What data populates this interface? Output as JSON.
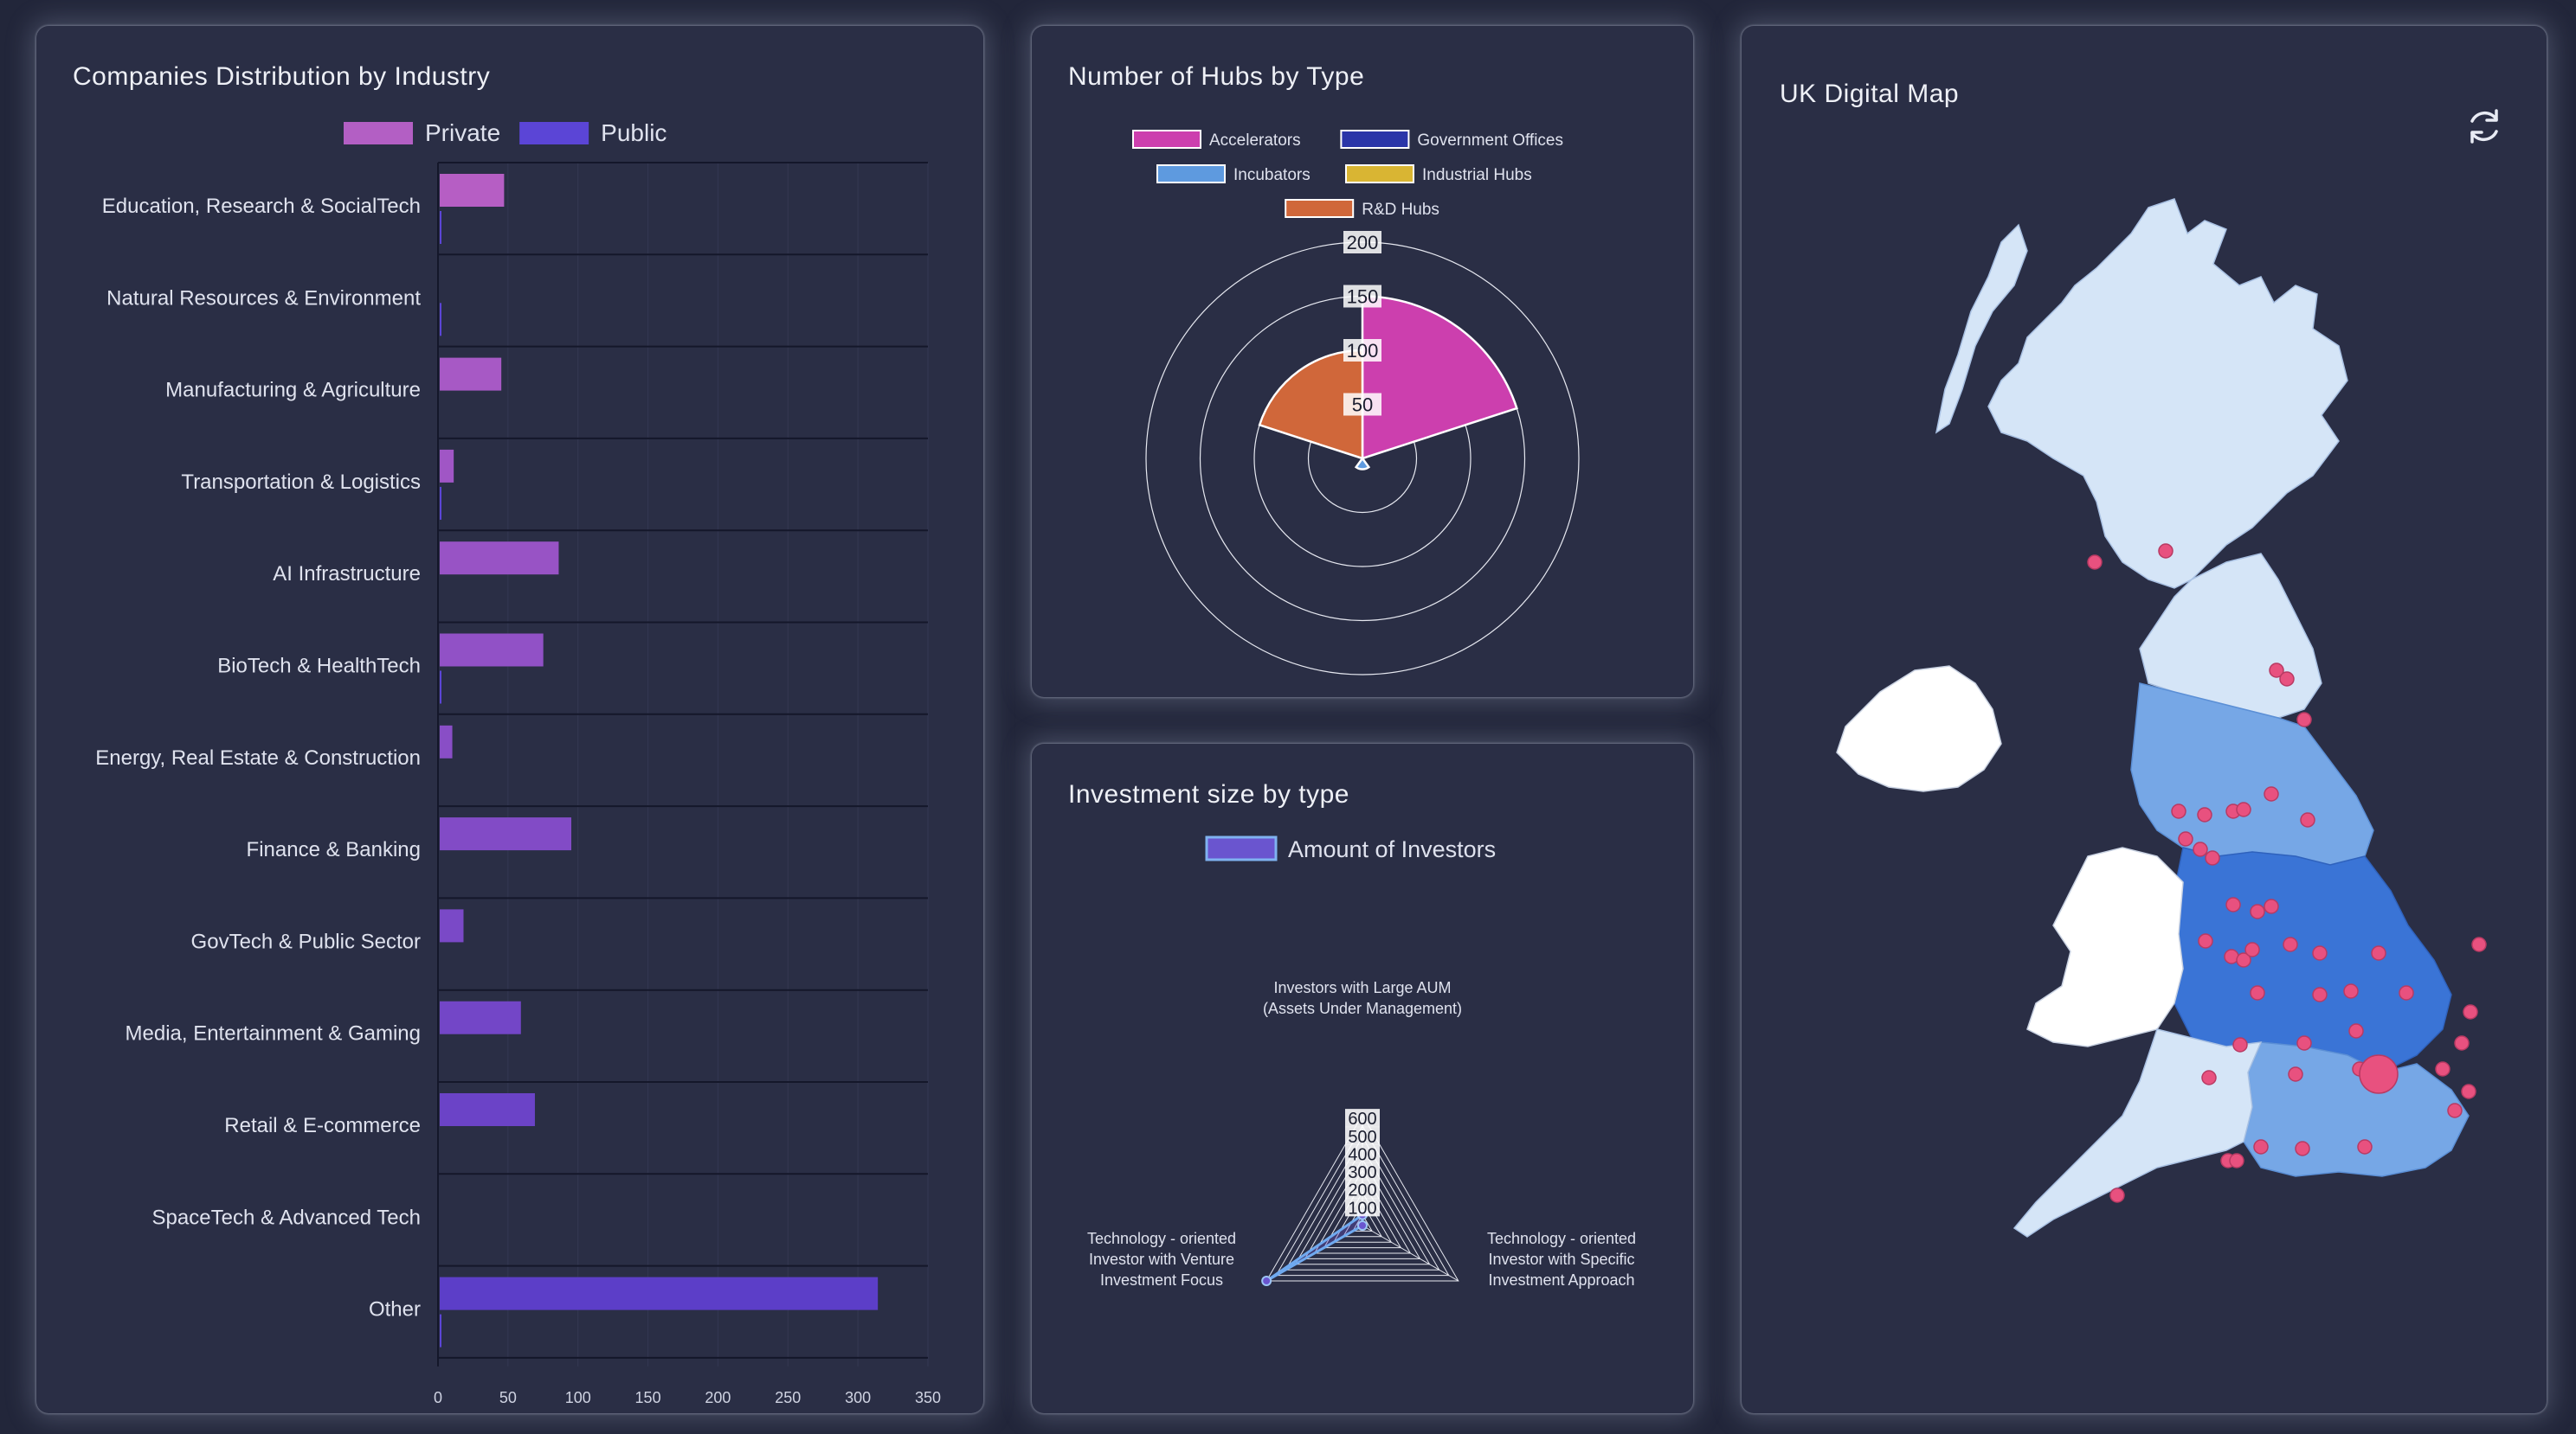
{
  "industry_panel": {
    "title": "Companies Distribution by Industry",
    "legend": [
      {
        "label": "Private",
        "color": "#b35fc4"
      },
      {
        "label": "Public",
        "color": "#5b45d6"
      }
    ]
  },
  "hubs_panel": {
    "title": "Number of Hubs by Type",
    "legend": [
      {
        "label": "Accelerators",
        "color": "#cc3fae"
      },
      {
        "label": "Government Offices",
        "color": "#2a35a8"
      },
      {
        "label": "Incubators",
        "color": "#5e9adf"
      },
      {
        "label": "Industrial Hubs",
        "color": "#d9b533"
      },
      {
        "label": "R&D Hubs",
        "color": "#d0673a"
      }
    ]
  },
  "investment_panel": {
    "title": "Investment size by type",
    "legend": [
      {
        "label": "Amount of Investors",
        "color": "#6a55cf"
      }
    ]
  },
  "map_panel": {
    "title": "UK Digital Map",
    "refresh_icon": "refresh-icon",
    "colors": {
      "light": "#d5e5f7",
      "mid": "#76a7e6",
      "dark": "#3a74d6",
      "white": "#ffffff",
      "marker": "#e8517f"
    }
  },
  "chart_data": [
    {
      "type": "bar",
      "orientation": "horizontal",
      "categories": [
        "Education, Research & SocialTech",
        "Natural Resources & Environment",
        "Manufacturing & Agriculture",
        "Transportation & Logistics",
        "AI Infrastructure",
        "BioTech & HealthTech",
        "Energy, Real Estate & Construction",
        "Finance & Banking",
        "GovTech & Public Sector",
        "Media, Entertainment & Gaming",
        "Retail & E-commerce",
        "SpaceTech & Advanced Tech",
        "Other"
      ],
      "series": [
        {
          "name": "Private",
          "values": [
            46,
            0,
            44,
            10,
            85,
            74,
            9,
            94,
            17,
            58,
            68,
            0,
            313
          ]
        },
        {
          "name": "Public",
          "values": [
            1,
            1,
            0,
            1,
            0,
            1,
            0,
            0,
            0,
            0,
            0,
            0,
            1
          ]
        }
      ],
      "xlim": [
        0,
        350
      ],
      "xticks": [
        "0",
        "50",
        "100",
        "150",
        "200",
        "250",
        "300",
        "350"
      ],
      "grid": true
    },
    {
      "type": "polar-area",
      "categories": [
        "Accelerators",
        "Government Offices",
        "Incubators",
        "Industrial Hubs",
        "R&D Hubs"
      ],
      "values": [
        150,
        0,
        10,
        0,
        100
      ],
      "rlim": [
        0,
        200
      ],
      "rticks": [
        "50",
        "100",
        "150",
        "200"
      ]
    },
    {
      "type": "radar",
      "axes": [
        "Investors with Large AUM (Assets Under Management)",
        "Technology - oriented Investor with Specific Investment Approach",
        "Technology - oriented Investor with Venture Investment Focus"
      ],
      "axis_label_lines": [
        [
          "Investors with Large AUM",
          "(Assets Under Management)"
        ],
        [
          "Technology - oriented",
          "Investor with Specific",
          "Investment Approach"
        ],
        [
          "Technology - oriented",
          "Investor with Venture",
          "Investment Focus"
        ]
      ],
      "series": [
        {
          "name": "Amount of Investors",
          "values": [
            60,
            0,
            620
          ]
        }
      ],
      "rlim": [
        0,
        620
      ],
      "rticks": [
        "100",
        "200",
        "300",
        "400",
        "500",
        "600"
      ]
    }
  ]
}
